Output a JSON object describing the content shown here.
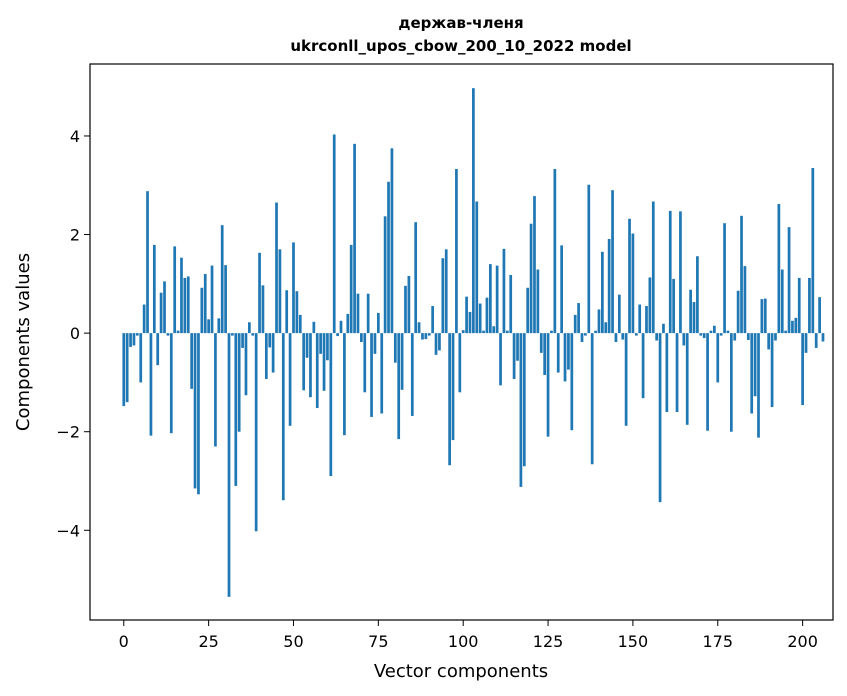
{
  "chart_data": {
    "type": "bar",
    "title_line1": "держав-членя",
    "title_line2": "ukrconll_upos_cbow_200_10_2022 model",
    "xlabel": "Vector components",
    "ylabel": "Components values",
    "xlim": [
      -9.95,
      208.95
    ],
    "ylim": [
      -5.82,
      5.46
    ],
    "xticks": [
      0,
      25,
      50,
      75,
      100,
      125,
      150,
      175,
      200
    ],
    "yticks": [
      -4,
      -2,
      0,
      2,
      4
    ],
    "ytick_labels": [
      "−4",
      "−2",
      "0",
      "2",
      "4"
    ],
    "bar_color": "#1f77b4",
    "values": [
      -1.48,
      -1.4,
      -0.28,
      -0.25,
      -0.05,
      -1.0,
      0.58,
      2.88,
      -2.08,
      1.79,
      -0.65,
      0.82,
      1.05,
      -0.05,
      -2.03,
      1.76,
      0.05,
      1.53,
      1.12,
      1.15,
      -1.13,
      -3.15,
      -3.27,
      0.92,
      1.2,
      0.28,
      1.37,
      -2.3,
      0.3,
      2.19,
      1.38,
      -5.35,
      -0.05,
      -3.1,
      -2.0,
      -0.3,
      -1.26,
      0.22,
      -0.05,
      -4.02,
      1.63,
      0.97,
      -0.93,
      -0.29,
      -0.8,
      2.65,
      1.7,
      -3.39,
      0.87,
      -1.88,
      1.84,
      0.85,
      0.37,
      -1.16,
      -0.5,
      -1.3,
      0.23,
      -1.52,
      -0.42,
      -1.17,
      -0.55,
      -2.9,
      4.03,
      -0.06,
      0.25,
      -2.07,
      0.39,
      1.79,
      3.84,
      0.8,
      -0.18,
      -1.2,
      0.8,
      -1.7,
      -0.42,
      0.41,
      -1.63,
      2.37,
      3.07,
      3.75,
      -0.6,
      -2.15,
      -1.15,
      0.96,
      1.16,
      -1.68,
      2.25,
      0.22,
      -0.13,
      -0.12,
      -0.05,
      0.55,
      -0.44,
      -0.35,
      1.52,
      1.7,
      -2.68,
      -2.17,
      3.33,
      -1.2,
      0.06,
      0.74,
      0.43,
      4.97,
      2.67,
      0.6,
      0.05,
      0.72,
      1.4,
      0.14,
      1.37,
      -1.06,
      1.71,
      0.05,
      1.18,
      -0.93,
      -0.56,
      -3.12,
      -2.7,
      0.92,
      2.22,
      2.78,
      1.29,
      -0.4,
      -0.85,
      -2.1,
      0.05,
      3.33,
      -0.8,
      1.78,
      -0.98,
      -0.74,
      -1.97,
      0.37,
      0.61,
      -0.18,
      -0.05,
      3.01,
      -2.66,
      0.05,
      0.48,
      1.65,
      0.22,
      1.91,
      2.9,
      -0.18,
      0.78,
      -0.13,
      -1.88,
      2.32,
      2.02,
      -0.05,
      0.58,
      -1.32,
      0.55,
      1.13,
      2.67,
      -0.15,
      -3.43,
      0.19,
      -1.6,
      2.48,
      1.1,
      -1.6,
      2.47,
      -0.25,
      -1.86,
      0.88,
      0.63,
      1.56,
      -0.05,
      -0.1,
      -1.98,
      0.05,
      0.15,
      -1.0,
      -0.05,
      2.23,
      0.05,
      -2.0,
      -0.15,
      0.86,
      2.38,
      1.36,
      -0.14,
      -1.63,
      -1.28,
      -2.12,
      0.69,
      0.7,
      -0.33,
      -1.5,
      -0.15,
      2.62,
      1.29,
      0.05,
      2.15,
      0.25,
      0.31,
      1.12,
      -1.46,
      -0.4,
      1.12,
      3.35,
      -0.3,
      0.73,
      -0.17
    ]
  }
}
